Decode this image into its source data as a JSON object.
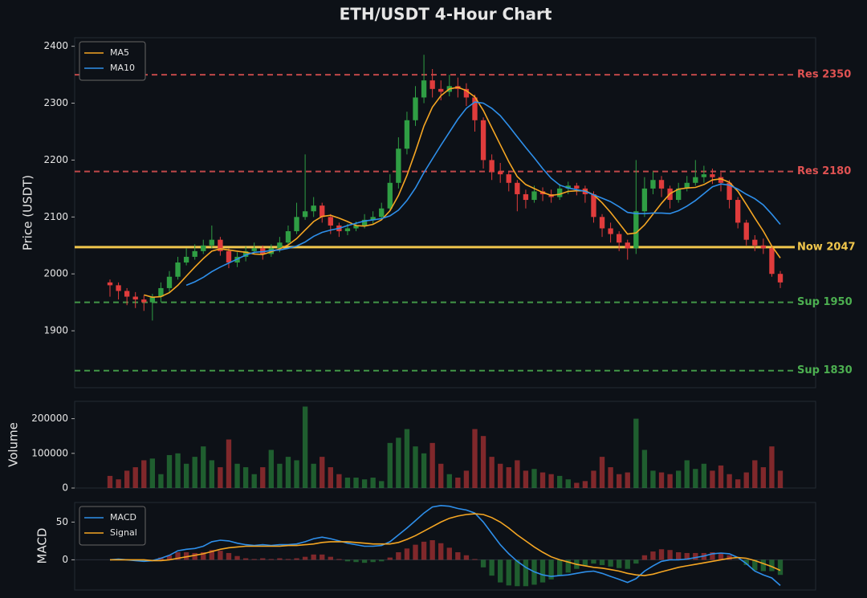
{
  "chart_data": {
    "type": "candlestick",
    "title": "ETH/USDT 4-Hour Chart",
    "y_label": "Price (USDT)",
    "ylim": [
      1800,
      2415
    ],
    "yticks": [
      1900,
      2000,
      2100,
      2200,
      2300,
      2400
    ],
    "up_color": "#2f9e44",
    "down_color": "#e03c3c",
    "open": [
      1985,
      1980,
      1970,
      1960,
      1955,
      1950,
      1960,
      1975,
      1995,
      2020,
      2030,
      2040,
      2050,
      2060,
      2040,
      2020,
      2030,
      2040,
      2045,
      2035,
      2045,
      2055,
      2075,
      2100,
      2110,
      2120,
      2100,
      2085,
      2075,
      2080,
      2085,
      2095,
      2100,
      2115,
      2160,
      2220,
      2270,
      2310,
      2340,
      2325,
      2320,
      2330,
      2325,
      2310,
      2270,
      2200,
      2180,
      2175,
      2160,
      2140,
      2130,
      2145,
      2140,
      2135,
      2150,
      2155,
      2150,
      2140,
      2100,
      2080,
      2070,
      2055,
      2045,
      2110,
      2150,
      2165,
      2150,
      2130,
      2150,
      2160,
      2170,
      2175,
      2170,
      2160,
      2130,
      2090,
      2060,
      2050,
      2045,
      2000
    ],
    "high": [
      1990,
      1985,
      1975,
      1968,
      1962,
      1965,
      1985,
      2005,
      2030,
      2045,
      2052,
      2060,
      2085,
      2065,
      2045,
      2038,
      2048,
      2055,
      2050,
      2052,
      2065,
      2085,
      2125,
      2210,
      2135,
      2125,
      2105,
      2090,
      2088,
      2092,
      2105,
      2110,
      2125,
      2175,
      2240,
      2285,
      2330,
      2385,
      2360,
      2340,
      2350,
      2345,
      2335,
      2315,
      2275,
      2210,
      2195,
      2180,
      2165,
      2148,
      2155,
      2152,
      2148,
      2158,
      2162,
      2160,
      2155,
      2145,
      2105,
      2090,
      2075,
      2060,
      2200,
      2170,
      2180,
      2172,
      2155,
      2160,
      2172,
      2200,
      2190,
      2185,
      2178,
      2165,
      2135,
      2095,
      2068,
      2062,
      2050,
      2005
    ],
    "low": [
      1960,
      1955,
      1945,
      1940,
      1935,
      1918,
      1950,
      1968,
      1990,
      2015,
      2025,
      2035,
      2045,
      2032,
      2010,
      2012,
      2022,
      2035,
      2025,
      2030,
      2038,
      2050,
      2070,
      2095,
      2100,
      2090,
      2070,
      2065,
      2068,
      2075,
      2080,
      2088,
      2095,
      2110,
      2150,
      2210,
      2260,
      2300,
      2310,
      2305,
      2312,
      2310,
      2295,
      2250,
      2185,
      2165,
      2160,
      2145,
      2110,
      2115,
      2125,
      2128,
      2125,
      2130,
      2140,
      2138,
      2125,
      2090,
      2065,
      2055,
      2040,
      2025,
      2035,
      2100,
      2140,
      2135,
      2115,
      2125,
      2145,
      2155,
      2160,
      2158,
      2145,
      2115,
      2080,
      2050,
      2040,
      2035,
      1995,
      1975
    ],
    "close": [
      1980,
      1970,
      1960,
      1955,
      1950,
      1960,
      1975,
      1995,
      2020,
      2030,
      2040,
      2050,
      2060,
      2040,
      2020,
      2030,
      2040,
      2045,
      2035,
      2045,
      2055,
      2075,
      2100,
      2110,
      2120,
      2100,
      2085,
      2075,
      2080,
      2085,
      2095,
      2100,
      2115,
      2160,
      2220,
      2270,
      2310,
      2340,
      2325,
      2320,
      2330,
      2325,
      2310,
      2270,
      2200,
      2180,
      2175,
      2160,
      2140,
      2130,
      2145,
      2140,
      2135,
      2150,
      2155,
      2150,
      2140,
      2100,
      2080,
      2070,
      2055,
      2045,
      2110,
      2150,
      2165,
      2150,
      2130,
      2150,
      2160,
      2170,
      2175,
      2170,
      2160,
      2130,
      2090,
      2060,
      2050,
      2045,
      2000,
      1985
    ],
    "series": [
      {
        "name": "MA5",
        "color": "#f5a623",
        "values": [
          null,
          null,
          null,
          null,
          1963,
          1959,
          1960,
          1967,
          1980,
          1996,
          2012,
          2027,
          2040,
          2044,
          2042,
          2040,
          2038,
          2035,
          2034,
          2039,
          2044,
          2051,
          2062,
          2077,
          2092,
          2101,
          2103,
          2098,
          2092,
          2085,
          2084,
          2087,
          2095,
          2111,
          2138,
          2173,
          2215,
          2260,
          2293,
          2313,
          2325,
          2328,
          2322,
          2311,
          2287,
          2257,
          2227,
          2197,
          2171,
          2157,
          2150,
          2143,
          2138,
          2140,
          2145,
          2146,
          2146,
          2139,
          2125,
          2108,
          2089,
          2070,
          2072,
          2086,
          2105,
          2124,
          2141,
          2149,
          2151,
          2152,
          2157,
          2165,
          2167,
          2161,
          2145,
          2122,
          2098,
          2075,
          2049,
          2028
        ]
      },
      {
        "name": "MA10",
        "color": "#2e8fea",
        "values": [
          null,
          null,
          null,
          null,
          null,
          null,
          null,
          null,
          null,
          1980,
          1986,
          1994,
          2004,
          2012,
          2019,
          2026,
          2033,
          2038,
          2039,
          2041,
          2042,
          2045,
          2049,
          2056,
          2066,
          2073,
          2077,
          2080,
          2085,
          2089,
          2093,
          2095,
          2097,
          2102,
          2112,
          2129,
          2151,
          2178,
          2202,
          2226,
          2249,
          2272,
          2291,
          2302,
          2300,
          2291,
          2278,
          2260,
          2241,
          2222,
          2204,
          2185,
          2168,
          2156,
          2151,
          2148,
          2145,
          2139,
          2133,
          2127,
          2118,
          2108,
          2106,
          2106,
          2107,
          2107,
          2106,
          2111,
          2119,
          2129,
          2141,
          2153,
          2158,
          2156,
          2149,
          2140,
          2132,
          2121,
          2105,
          2087
        ]
      }
    ],
    "levels": [
      {
        "value": 2350,
        "label": "Res 2350",
        "color": "#e05252",
        "style": "dashed"
      },
      {
        "value": 2180,
        "label": "Res 2180",
        "color": "#e05252",
        "style": "dashed"
      },
      {
        "value": 2047,
        "label": "Now 2047",
        "color": "#f0c64c",
        "style": "solid"
      },
      {
        "value": 1950,
        "label": "Sup 1950",
        "color": "#4caf50",
        "style": "dashed"
      },
      {
        "value": 1830,
        "label": "Sup 1830",
        "color": "#4caf50",
        "style": "dashed"
      }
    ],
    "legend": "upper left",
    "volume": {
      "y_label": "Volume",
      "ylim": [
        0,
        250000
      ],
      "yticks": [
        0,
        100000,
        200000
      ],
      "values": [
        35000,
        25000,
        50000,
        60000,
        80000,
        85000,
        40000,
        95000,
        100000,
        70000,
        90000,
        120000,
        80000,
        60000,
        140000,
        70000,
        60000,
        40000,
        60000,
        110000,
        70000,
        90000,
        80000,
        235000,
        70000,
        90000,
        60000,
        40000,
        30000,
        30000,
        25000,
        30000,
        20000,
        130000,
        145000,
        170000,
        120000,
        100000,
        130000,
        70000,
        40000,
        30000,
        50000,
        170000,
        150000,
        90000,
        70000,
        60000,
        80000,
        50000,
        55000,
        45000,
        40000,
        35000,
        25000,
        15000,
        20000,
        50000,
        90000,
        60000,
        40000,
        45000,
        200000,
        110000,
        50000,
        45000,
        40000,
        50000,
        80000,
        55000,
        70000,
        50000,
        65000,
        40000,
        25000,
        45000,
        80000,
        60000,
        120000,
        50000
      ]
    },
    "macd": {
      "y_label": "MACD",
      "ylim": [
        -40,
        76
      ],
      "yticks": [
        0,
        50
      ],
      "legend": "upper left",
      "series": [
        {
          "name": "MACD",
          "color": "#2e8fea",
          "values": [
            0,
            1,
            0,
            -1,
            -2,
            -1,
            2,
            6,
            12,
            14,
            15,
            18,
            24,
            26,
            25,
            22,
            20,
            19,
            20,
            19,
            20,
            20,
            21,
            24,
            28,
            30,
            28,
            25,
            22,
            20,
            18,
            18,
            19,
            24,
            33,
            42,
            52,
            62,
            70,
            72,
            71,
            68,
            66,
            62,
            50,
            35,
            20,
            8,
            -2,
            -10,
            -16,
            -20,
            -22,
            -21,
            -20,
            -18,
            -16,
            -15,
            -18,
            -22,
            -26,
            -30,
            -25,
            -15,
            -8,
            -2,
            0,
            0,
            1,
            3,
            5,
            8,
            9,
            8,
            3,
            -5,
            -15,
            -20,
            -24,
            -34
          ]
        },
        {
          "name": "Signal",
          "color": "#f5a623",
          "values": [
            0,
            0,
            0,
            0,
            0,
            -1,
            -1,
            0,
            2,
            4,
            6,
            8,
            11,
            14,
            16,
            17,
            18,
            18,
            18,
            18,
            18,
            19,
            19,
            20,
            21,
            23,
            24,
            24,
            24,
            23,
            22,
            21,
            21,
            21,
            23,
            27,
            32,
            38,
            44,
            50,
            55,
            58,
            60,
            61,
            60,
            56,
            50,
            42,
            33,
            25,
            17,
            10,
            4,
            0,
            -3,
            -6,
            -8,
            -10,
            -11,
            -13,
            -15,
            -18,
            -20,
            -21,
            -19,
            -16,
            -13,
            -10,
            -8,
            -6,
            -4,
            -2,
            0,
            2,
            3,
            2,
            -1,
            -5,
            -9,
            -14
          ]
        }
      ],
      "histogram": [
        0,
        1,
        0,
        -1,
        -2,
        0,
        3,
        6,
        10,
        10,
        9,
        10,
        13,
        12,
        9,
        5,
        2,
        1,
        2,
        1,
        2,
        1,
        2,
        4,
        7,
        7,
        4,
        1,
        -2,
        -3,
        -4,
        -3,
        -2,
        3,
        10,
        15,
        20,
        24,
        26,
        22,
        16,
        10,
        6,
        1,
        -10,
        -21,
        -30,
        -34,
        -35,
        -35,
        -33,
        -30,
        -26,
        -21,
        -17,
        -12,
        -8,
        -5,
        -7,
        -9,
        -11,
        -12,
        -5,
        6,
        11,
        14,
        13,
        10,
        9,
        9,
        9,
        10,
        9,
        6,
        0,
        -7,
        -14,
        -15,
        -15,
        -20
      ]
    }
  }
}
